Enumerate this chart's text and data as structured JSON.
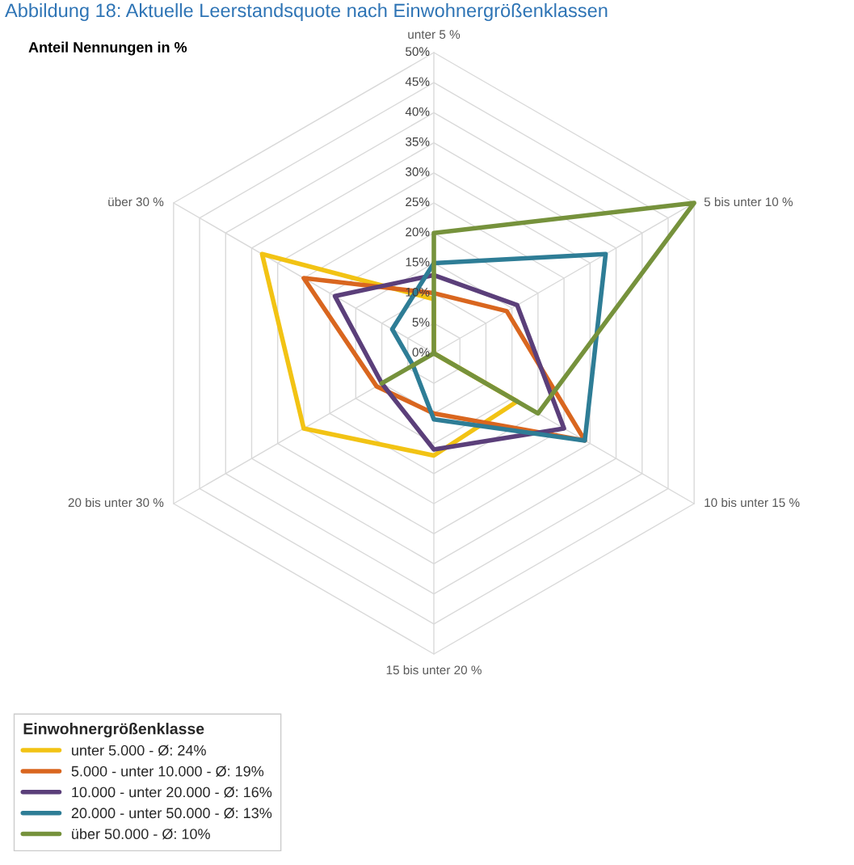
{
  "chart_data": {
    "type": "radar",
    "title": "Abbildung 18: Aktuelle Leerstandsquote nach Einwohnergrößenklassen",
    "subtitle": "Anteil Nennungen in %",
    "categories": [
      "unter 5 %",
      "5 bis unter 10 %",
      "10 bis unter 15 %",
      "15 bis unter 20 %",
      "20 bis unter 30 %",
      "über 30 %"
    ],
    "ylim": [
      0,
      50
    ],
    "yticks": [
      {
        "value": 0,
        "label": "0%"
      },
      {
        "value": 5,
        "label": "5%"
      },
      {
        "value": 10,
        "label": "10%"
      },
      {
        "value": 15,
        "label": "15%"
      },
      {
        "value": 20,
        "label": "20%"
      },
      {
        "value": 25,
        "label": "25%"
      },
      {
        "value": 30,
        "label": "30%"
      },
      {
        "value": 35,
        "label": "35%"
      },
      {
        "value": 40,
        "label": "40%"
      },
      {
        "value": 45,
        "label": "45%"
      },
      {
        "value": 50,
        "label": "50%"
      }
    ],
    "grid": true,
    "legend": "bottom left",
    "legend_title": "Einwohnergrößenklasse",
    "line_style": "solid",
    "series": [
      {
        "name": "unter 5.000 - Ø: 24%",
        "color": "#f2c314",
        "values": [
          9,
          0,
          16,
          17,
          25,
          33
        ]
      },
      {
        "name": "5.000 - unter 10.000 - Ø: 19%",
        "color": "#d9661f",
        "values": [
          10,
          14,
          29,
          10,
          11,
          25
        ]
      },
      {
        "name": "10.000 - unter 20.000 - Ø: 16%",
        "color": "#5b3f7a",
        "values": [
          13,
          16,
          25,
          16,
          10,
          19
        ]
      },
      {
        "name": "20.000 - unter 50.000 - Ø: 13%",
        "color": "#2e7d96",
        "values": [
          15,
          33,
          29,
          11,
          4,
          8
        ]
      },
      {
        "name": "über 50.000 - Ø: 10%",
        "color": "#76923c",
        "values": [
          20,
          50,
          20,
          0,
          10,
          0
        ]
      }
    ]
  }
}
